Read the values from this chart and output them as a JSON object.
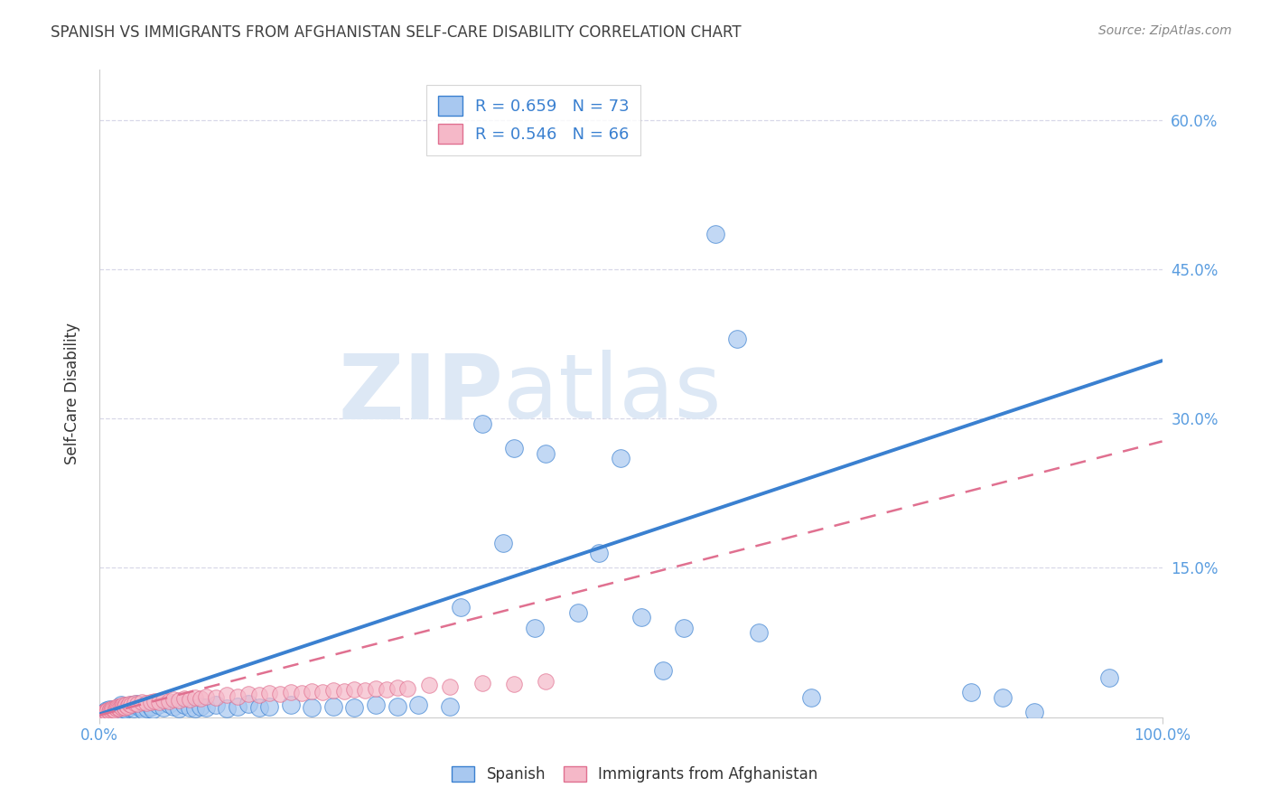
{
  "title": "SPANISH VS IMMIGRANTS FROM AFGHANISTAN SELF-CARE DISABILITY CORRELATION CHART",
  "source": "Source: ZipAtlas.com",
  "ylabel": "Self-Care Disability",
  "xlim": [
    0,
    1.0
  ],
  "ylim": [
    0,
    0.65
  ],
  "ytick_positions": [
    0.0,
    0.15,
    0.3,
    0.45,
    0.6
  ],
  "yticklabels_right": [
    "",
    "15.0%",
    "30.0%",
    "45.0%",
    "60.0%"
  ],
  "xtick_positions": [
    0.0,
    1.0
  ],
  "xticklabels": [
    "0.0%",
    "100.0%"
  ],
  "R_spanish": 0.659,
  "N_spanish": 73,
  "R_afghan": 0.546,
  "N_afghan": 66,
  "color_spanish": "#a8c8f0",
  "color_afghan": "#f5b8c8",
  "line_color_spanish": "#3a80d0",
  "line_color_afghan": "#e07090",
  "line_color_tick": "#5a9de0",
  "watermark_color": "#dde8f5",
  "grid_color": "#d8d8e8",
  "spine_color": "#cccccc",
  "title_color": "#404040",
  "source_color": "#888888",
  "label_color": "#333333",
  "slope_spanish": 0.355,
  "intercept_spanish": 0.003,
  "slope_afghan": 0.275,
  "intercept_afghan": 0.002,
  "scatter_spanish_x": [
    0.005,
    0.007,
    0.008,
    0.009,
    0.01,
    0.011,
    0.012,
    0.013,
    0.014,
    0.015,
    0.016,
    0.017,
    0.018,
    0.019,
    0.02,
    0.021,
    0.022,
    0.023,
    0.025,
    0.027,
    0.03,
    0.032,
    0.035,
    0.038,
    0.04,
    0.042,
    0.045,
    0.048,
    0.05,
    0.055,
    0.06,
    0.065,
    0.07,
    0.075,
    0.08,
    0.085,
    0.09,
    0.095,
    0.1,
    0.11,
    0.12,
    0.13,
    0.14,
    0.15,
    0.16,
    0.18,
    0.2,
    0.22,
    0.24,
    0.26,
    0.28,
    0.3,
    0.33,
    0.36,
    0.39,
    0.42,
    0.34,
    0.38,
    0.41,
    0.45,
    0.47,
    0.49,
    0.51,
    0.53,
    0.55,
    0.58,
    0.6,
    0.62,
    0.67,
    0.82,
    0.85,
    0.88,
    0.95
  ],
  "scatter_spanish_y": [
    0.005,
    0.007,
    0.005,
    0.008,
    0.006,
    0.004,
    0.006,
    0.008,
    0.005,
    0.007,
    0.009,
    0.006,
    0.01,
    0.005,
    0.012,
    0.007,
    0.009,
    0.011,
    0.008,
    0.01,
    0.012,
    0.009,
    0.013,
    0.01,
    0.011,
    0.007,
    0.009,
    0.011,
    0.008,
    0.012,
    0.01,
    0.013,
    0.011,
    0.009,
    0.012,
    0.01,
    0.009,
    0.011,
    0.01,
    0.012,
    0.009,
    0.011,
    0.013,
    0.01,
    0.011,
    0.012,
    0.01,
    0.011,
    0.01,
    0.012,
    0.011,
    0.012,
    0.011,
    0.295,
    0.27,
    0.265,
    0.11,
    0.175,
    0.09,
    0.105,
    0.165,
    0.26,
    0.1,
    0.047,
    0.09,
    0.485,
    0.38,
    0.085,
    0.02,
    0.025,
    0.02,
    0.005,
    0.04
  ],
  "scatter_afghan_x": [
    0.003,
    0.004,
    0.005,
    0.006,
    0.007,
    0.008,
    0.009,
    0.01,
    0.011,
    0.012,
    0.013,
    0.014,
    0.015,
    0.016,
    0.017,
    0.018,
    0.019,
    0.02,
    0.021,
    0.022,
    0.023,
    0.024,
    0.025,
    0.026,
    0.028,
    0.03,
    0.033,
    0.036,
    0.04,
    0.044,
    0.048,
    0.052,
    0.056,
    0.06,
    0.065,
    0.07,
    0.075,
    0.08,
    0.085,
    0.09,
    0.095,
    0.1,
    0.11,
    0.12,
    0.13,
    0.14,
    0.15,
    0.16,
    0.17,
    0.18,
    0.19,
    0.2,
    0.21,
    0.22,
    0.23,
    0.24,
    0.25,
    0.26,
    0.27,
    0.28,
    0.29,
    0.31,
    0.33,
    0.36,
    0.39,
    0.42
  ],
  "scatter_afghan_y": [
    0.003,
    0.005,
    0.004,
    0.006,
    0.005,
    0.007,
    0.006,
    0.008,
    0.007,
    0.009,
    0.008,
    0.007,
    0.01,
    0.009,
    0.011,
    0.01,
    0.009,
    0.011,
    0.01,
    0.012,
    0.011,
    0.01,
    0.012,
    0.011,
    0.013,
    0.012,
    0.014,
    0.013,
    0.015,
    0.014,
    0.015,
    0.016,
    0.015,
    0.017,
    0.016,
    0.018,
    0.017,
    0.019,
    0.018,
    0.02,
    0.019,
    0.021,
    0.02,
    0.022,
    0.021,
    0.023,
    0.022,
    0.024,
    0.023,
    0.025,
    0.024,
    0.026,
    0.025,
    0.027,
    0.026,
    0.028,
    0.027,
    0.029,
    0.028,
    0.03,
    0.029,
    0.032,
    0.031,
    0.034,
    0.033,
    0.036
  ]
}
